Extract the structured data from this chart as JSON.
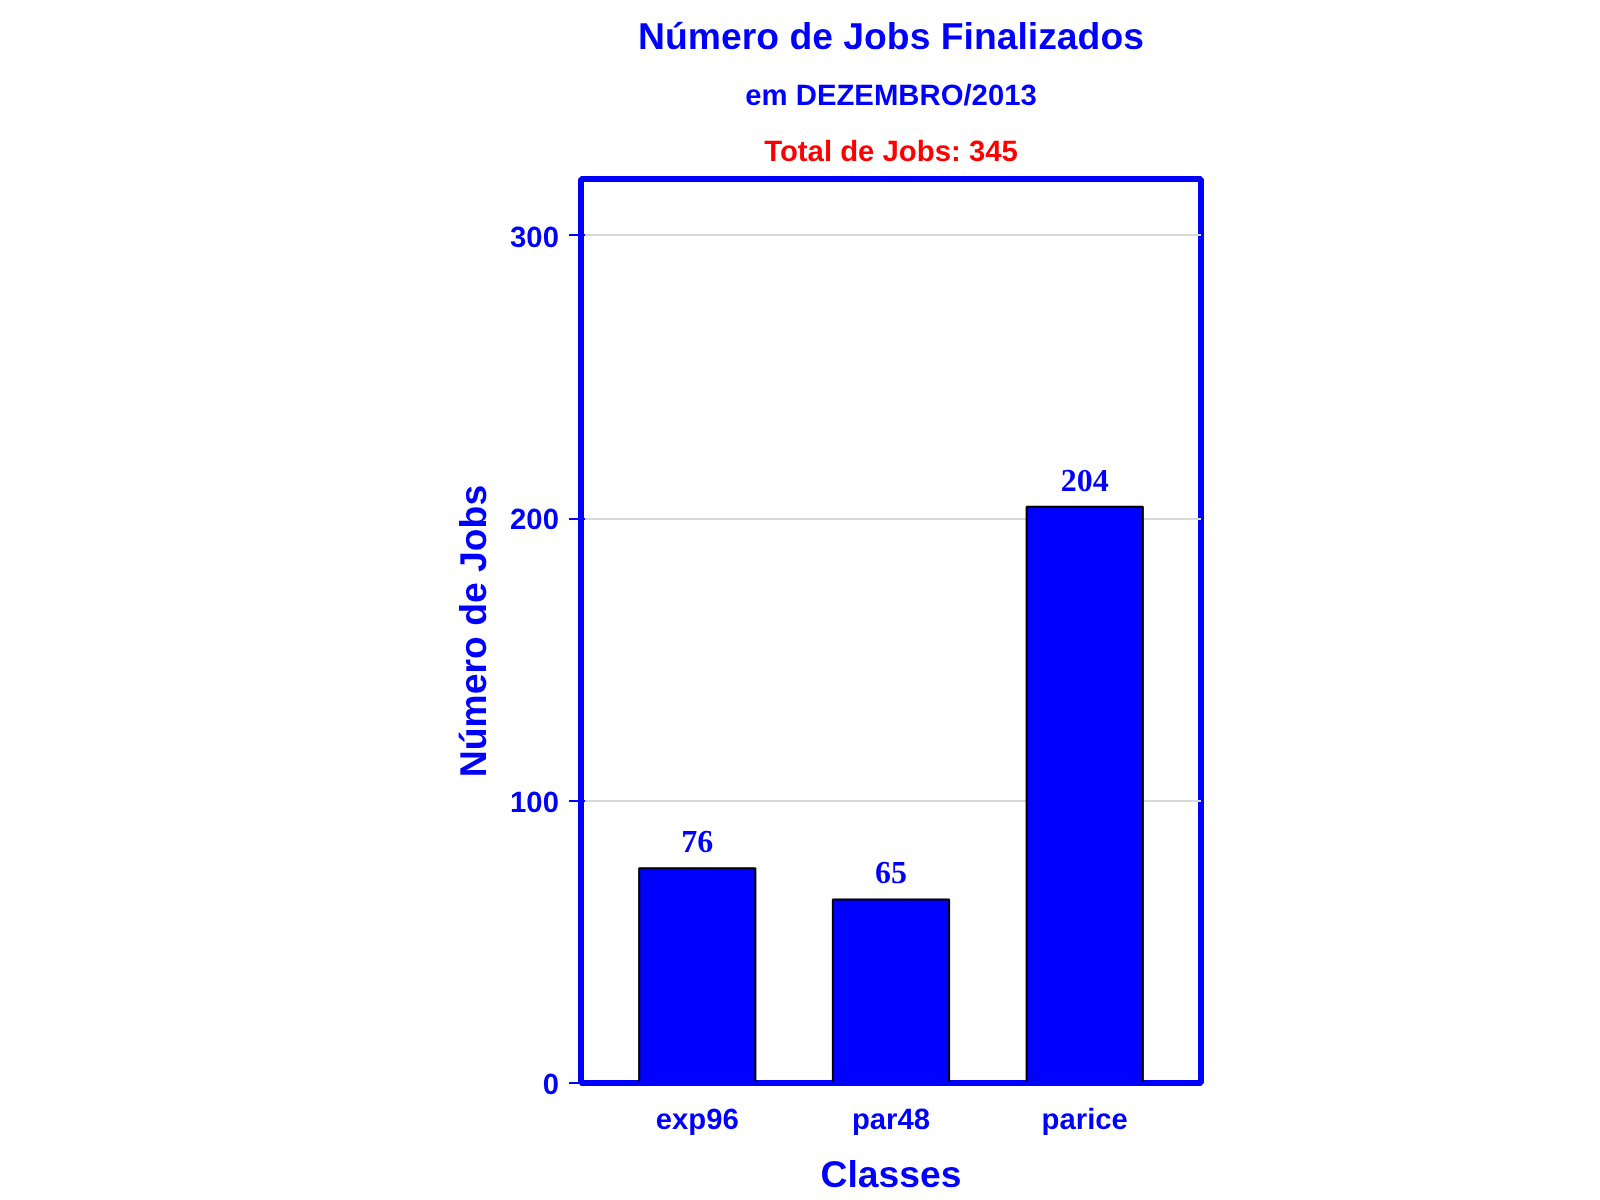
{
  "chart_data": {
    "type": "bar",
    "title": "Número de Jobs Finalizados",
    "subtitle": "em DEZEMBRO/2013",
    "annotations": [
      "Total de Jobs: 345"
    ],
    "xlabel": "Classes",
    "ylabel": "Número de Jobs",
    "categories": [
      "exp96",
      "par48",
      "parice"
    ],
    "values": [
      76,
      65,
      204
    ],
    "color": "#0000ff",
    "ylim": [
      0,
      320
    ],
    "yticks": [
      0,
      100,
      200,
      300
    ],
    "grid": "y",
    "data_labels": true
  }
}
